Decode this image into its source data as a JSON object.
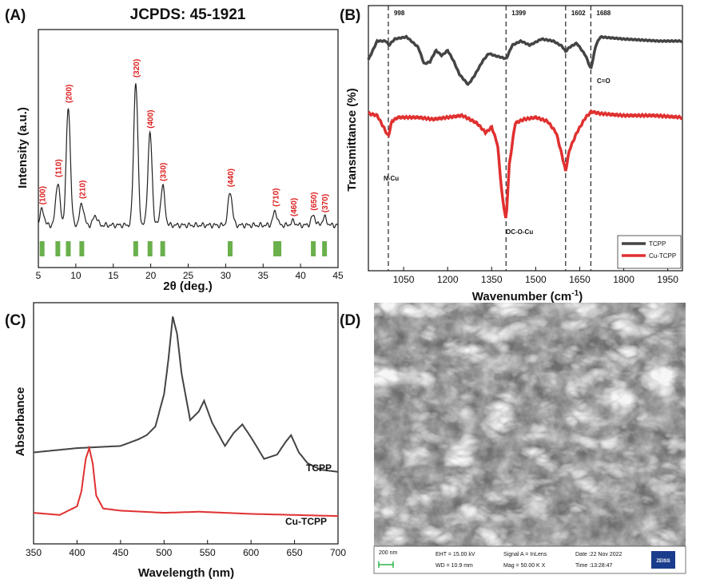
{
  "colors": {
    "dark": "#444444",
    "red": "#e03030",
    "peakLabel": "#d22222",
    "bar": "#6ab04c"
  },
  "panelA": {
    "label": "(A)",
    "title": "JCPDS: 45-1921",
    "xlabel": "2θ (deg.)",
    "ylabel": "Intensity (a.u.)",
    "xticks": [
      "5",
      "10",
      "15",
      "20",
      "25",
      "30",
      "35",
      "40",
      "45"
    ],
    "peaks": [
      {
        "x": 5.5,
        "label": "(100)"
      },
      {
        "x": 7.6,
        "label": "(110)"
      },
      {
        "x": 9.0,
        "label": "(200)"
      },
      {
        "x": 10.8,
        "label": "(210)"
      },
      {
        "x": 18.0,
        "label": "(320)"
      },
      {
        "x": 19.9,
        "label": "(400)"
      },
      {
        "x": 21.6,
        "label": "(330)"
      },
      {
        "x": 30.6,
        "label": "(440)"
      },
      {
        "x": 36.6,
        "label": "(710)"
      },
      {
        "x": 39.0,
        "label": "(460)"
      },
      {
        "x": 41.7,
        "label": "(650)"
      },
      {
        "x": 43.2,
        "label": "(370)"
      }
    ]
  },
  "panelB": {
    "label": "(B)",
    "xlabel": "Wavenumber (cm",
    "xlabel_sup": "-1",
    "xlabel_end": ")",
    "ylabel": "Transmittance (%)",
    "xticks": [
      "1050",
      "1200",
      "1350",
      "1500",
      "1650",
      "1800",
      "1950"
    ],
    "vlines": [
      {
        "x": 998,
        "label": "998"
      },
      {
        "x": 1399,
        "label": "1399"
      },
      {
        "x": 1602,
        "label": "1602"
      },
      {
        "x": 1688,
        "label": "1688"
      }
    ],
    "annotations": {
      "co": "C=O",
      "ncu": "N-Cu",
      "ococu": "OC-O-Cu"
    },
    "legend": [
      "TCPP",
      "Cu-TCPP"
    ]
  },
  "panelC": {
    "label": "(C)",
    "xlabel": "Wavelength (nm)",
    "ylabel": "Absorbance",
    "xticks": [
      "350",
      "400",
      "450",
      "500",
      "550",
      "600",
      "650",
      "700"
    ],
    "series_labels": [
      "TCPP",
      "Cu-TCPP"
    ]
  },
  "panelD": {
    "label": "(D)",
    "scale": "200 nm",
    "eht": "EHT = 15.00 kV",
    "wd": "WD = 10.9 mm",
    "signal": "Signal A = InLens",
    "mag": "Mag =  50.00 K X",
    "date": "Date :22 Nov 2022",
    "time": "Time :13:28:47",
    "logo": "ZEISS"
  },
  "chart_data": [
    {
      "type": "line",
      "title": "JCPDS: 45-1921",
      "xlabel": "2θ (deg.)",
      "ylabel": "Intensity (a.u.)",
      "xlim": [
        5,
        45
      ],
      "peaks_x": [
        5.5,
        7.6,
        9.0,
        10.8,
        12.6,
        18.0,
        19.9,
        21.6,
        30.6,
        36.6,
        39.0,
        41.7,
        43.2
      ],
      "peaks_y": [
        0.08,
        0.22,
        0.6,
        0.11,
        0.05,
        0.73,
        0.47,
        0.2,
        0.17,
        0.07,
        0.02,
        0.05,
        0.04
      ],
      "reference_bars_x": [
        5.5,
        7.6,
        9.0,
        10.8,
        18.0,
        19.9,
        21.6,
        30.6,
        36.9,
        41.7,
        43.2
      ]
    },
    {
      "type": "line",
      "xlabel": "Wavenumber (cm-1)",
      "ylabel": "Transmittance (%)",
      "xlim": [
        930,
        2000
      ],
      "xticks": [
        1050,
        1200,
        1350,
        1500,
        1650,
        1800,
        1950
      ],
      "series": [
        {
          "name": "TCPP",
          "x": [
            930,
            960,
            990,
            1000,
            1020,
            1060,
            1100,
            1120,
            1140,
            1160,
            1180,
            1200,
            1220,
            1240,
            1270,
            1290,
            1320,
            1340,
            1360,
            1400,
            1420,
            1450,
            1480,
            1520,
            1560,
            1590,
            1602,
            1615,
            1640,
            1670,
            1688,
            1705,
            1720,
            1760,
            1800,
            1860,
            1920,
            2000
          ],
          "y": [
            0.54,
            0.72,
            0.72,
            0.68,
            0.74,
            0.76,
            0.66,
            0.5,
            0.52,
            0.63,
            0.58,
            0.63,
            0.53,
            0.4,
            0.3,
            0.38,
            0.53,
            0.6,
            0.58,
            0.55,
            0.68,
            0.72,
            0.68,
            0.74,
            0.72,
            0.67,
            0.62,
            0.66,
            0.7,
            0.58,
            0.45,
            0.68,
            0.76,
            0.75,
            0.74,
            0.73,
            0.72,
            0.72
          ]
        },
        {
          "name": "Cu-TCPP",
          "x": [
            930,
            960,
            985,
            998,
            1010,
            1030,
            1060,
            1100,
            1150,
            1200,
            1250,
            1300,
            1330,
            1350,
            1370,
            1385,
            1399,
            1410,
            1430,
            1460,
            1500,
            1540,
            1570,
            1590,
            1602,
            1615,
            1640,
            1670,
            1690,
            1720,
            1800,
            1900,
            2000
          ],
          "y": [
            0.22,
            0.21,
            0.14,
            0.1,
            0.18,
            0.2,
            0.2,
            0.2,
            0.19,
            0.2,
            0.21,
            0.17,
            0.12,
            0.15,
            0.06,
            -0.2,
            -0.34,
            -0.05,
            0.17,
            0.19,
            0.2,
            0.18,
            0.12,
            0.0,
            -0.08,
            0.03,
            0.12,
            0.2,
            0.23,
            0.22,
            0.21,
            0.21,
            0.2
          ]
        }
      ]
    },
    {
      "type": "line",
      "xlabel": "Wavelength (nm)",
      "ylabel": "Absorbance",
      "xlim": [
        350,
        700
      ],
      "series": [
        {
          "name": "TCPP",
          "x": [
            350,
            400,
            450,
            470,
            480,
            490,
            500,
            505,
            510,
            515,
            520,
            530,
            540,
            546,
            555,
            570,
            580,
            590,
            600,
            615,
            630,
            640,
            646,
            655,
            665,
            680,
            700
          ],
          "y": [
            0.35,
            0.37,
            0.38,
            0.41,
            0.43,
            0.47,
            0.62,
            0.78,
            0.98,
            0.9,
            0.72,
            0.5,
            0.54,
            0.59,
            0.49,
            0.38,
            0.44,
            0.48,
            0.42,
            0.32,
            0.34,
            0.4,
            0.43,
            0.35,
            0.3,
            0.27,
            0.26
          ]
        },
        {
          "name": "Cu-TCPP",
          "x": [
            350,
            380,
            400,
            405,
            410,
            414,
            418,
            422,
            430,
            450,
            500,
            540,
            600,
            650,
            700
          ],
          "y": [
            0.07,
            0.06,
            0.1,
            0.17,
            0.32,
            0.37,
            0.3,
            0.15,
            0.09,
            0.08,
            0.07,
            0.075,
            0.065,
            0.06,
            0.055
          ]
        }
      ]
    }
  ]
}
